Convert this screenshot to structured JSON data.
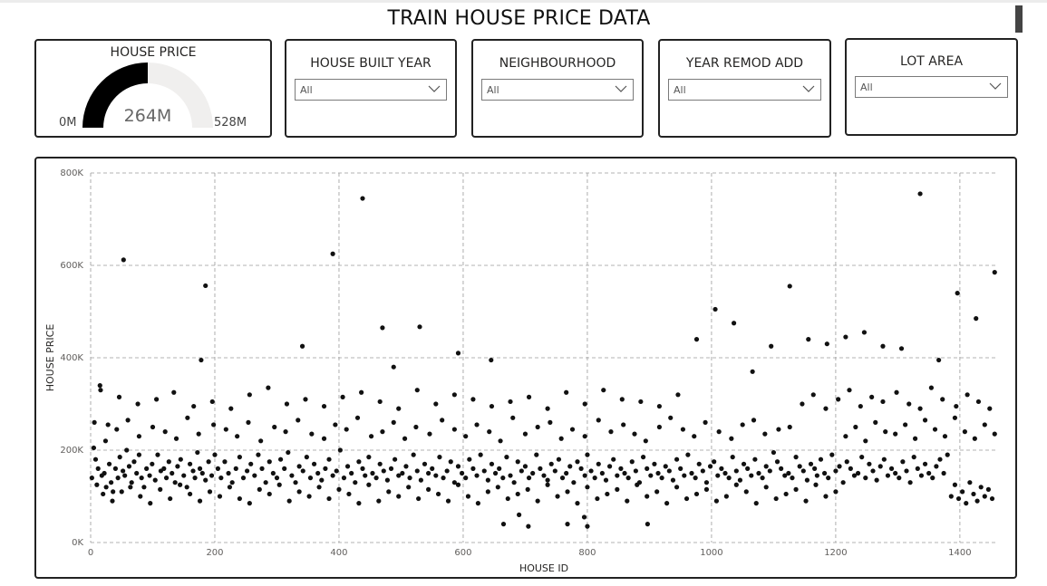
{
  "report": {
    "title": "TRAIN HOUSE PRICE DATA"
  },
  "gauge": {
    "title": "HOUSE PRICE",
    "value": 264,
    "min": 0,
    "max": 528,
    "value_label": "264M",
    "min_label": "0M",
    "max_label": "528M",
    "fill_color": "#000000",
    "track_color": "#f0efee"
  },
  "slicers": [
    {
      "title": "HOUSE BUILT YEAR",
      "selected": "All"
    },
    {
      "title": "NEIGHBOURHOOD",
      "selected": "All"
    },
    {
      "title": "YEAR REMOD ADD",
      "selected": "All"
    },
    {
      "title": "LOT AREA",
      "selected": "All"
    }
  ],
  "chart_data": {
    "type": "scatter",
    "xlabel": "HOUSE ID",
    "ylabel": "HOUSE PRICE",
    "xlim": [
      0,
      1460
    ],
    "ylim": [
      0,
      800000
    ],
    "x_ticks": [
      0,
      200,
      400,
      600,
      800,
      1000,
      1200,
      1400
    ],
    "x_tick_labels": [
      "0",
      "200",
      "400",
      "600",
      "800",
      "1000",
      "1200",
      "1400"
    ],
    "y_ticks": [
      0,
      200000,
      400000,
      600000,
      800000
    ],
    "y_tick_labels": [
      "0K",
      "200K",
      "400K",
      "600K",
      "800K"
    ],
    "grid": true,
    "marker_color": "#111111",
    "points_x": [
      2,
      5,
      8,
      12,
      15,
      18,
      22,
      25,
      28,
      30,
      33,
      36,
      40,
      44,
      47,
      52,
      55,
      58,
      62,
      66,
      70,
      74,
      78,
      82,
      86,
      90,
      95,
      99,
      104,
      108,
      113,
      118,
      122,
      126,
      131,
      136,
      140,
      145,
      150,
      155,
      160,
      165,
      168,
      172,
      176,
      180,
      185,
      190,
      195,
      200,
      205,
      210,
      216,
      222,
      228,
      234,
      240,
      246,
      252,
      258,
      264,
      270,
      276,
      282,
      288,
      294,
      300,
      306,
      312,
      318,
      324,
      330,
      336,
      342,
      348,
      354,
      360,
      366,
      372,
      378,
      384,
      390,
      396,
      402,
      408,
      414,
      420,
      426,
      432,
      438,
      442,
      448,
      454,
      460,
      466,
      472,
      478,
      484,
      490,
      496,
      502,
      508,
      514,
      520,
      526,
      532,
      538,
      544,
      550,
      556,
      562,
      568,
      574,
      580,
      586,
      592,
      598,
      604,
      610,
      616,
      622,
      628,
      634,
      640,
      646,
      652,
      658,
      664,
      670,
      676,
      682,
      688,
      694,
      700,
      706,
      712,
      718,
      724,
      730,
      736,
      742,
      748,
      754,
      760,
      766,
      772,
      778,
      784,
      790,
      796,
      800,
      806,
      812,
      818,
      824,
      830,
      836,
      842,
      848,
      854,
      860,
      866,
      872,
      878,
      884,
      890,
      896,
      902,
      908,
      914,
      920,
      926,
      932,
      938,
      944,
      950,
      956,
      962,
      968,
      974,
      980,
      986,
      992,
      998,
      1004,
      1010,
      1016,
      1022,
      1028,
      1034,
      1040,
      1046,
      1052,
      1058,
      1064,
      1070,
      1076,
      1082,
      1088,
      1094,
      1100,
      1106,
      1112,
      1118,
      1124,
      1130,
      1136,
      1142,
      1148,
      1154,
      1160,
      1166,
      1170,
      1176,
      1182,
      1188,
      1194,
      1200,
      1206,
      1212,
      1218,
      1224,
      1230,
      1236,
      1242,
      1248,
      1254,
      1260,
      1266,
      1272,
      1278,
      1284,
      1290,
      1296,
      1302,
      1308,
      1314,
      1320,
      1326,
      1332,
      1338,
      1344,
      1350,
      1356,
      1362,
      1368,
      1374,
      1380,
      1386,
      1392,
      1398,
      1404,
      1410,
      1416,
      1422,
      1428,
      1434,
      1440,
      1446,
      1452,
      10,
      20,
      35,
      50,
      64,
      80,
      96,
      112,
      128,
      144,
      160,
      176,
      192,
      208,
      224,
      240,
      256,
      272,
      288,
      304,
      320,
      336,
      352,
      368,
      384,
      400,
      416,
      432,
      448,
      464,
      480,
      496,
      512,
      528,
      544,
      560,
      576,
      592,
      608,
      624,
      640,
      656,
      672,
      688,
      704,
      720,
      736,
      752,
      768,
      784,
      800,
      816,
      832,
      848,
      864,
      880,
      896,
      912,
      928,
      944,
      960,
      976,
      992,
      1008,
      1024,
      1040,
      1056,
      1072,
      1088,
      1104,
      1120,
      1136,
      1152,
      1168,
      1184,
      1200,
      1216,
      1232,
      1248,
      1264,
      1280,
      1296,
      1312,
      1328,
      1344,
      1360,
      1376,
      1392,
      1408,
      1424,
      1440,
      1456,
      6,
      24,
      42,
      60,
      78,
      100,
      120,
      138,
      156,
      174,
      198,
      218,
      236,
      254,
      274,
      296,
      314,
      334,
      356,
      376,
      394,
      412,
      430,
      452,
      470,
      488,
      506,
      524,
      546,
      566,
      586,
      604,
      622,
      642,
      660,
      680,
      700,
      720,
      740,
      758,
      776,
      796,
      818,
      838,
      858,
      876,
      894,
      916,
      934,
      954,
      972,
      990,
      1012,
      1032,
      1050,
      1068,
      1086,
      1108,
      1126,
      1146,
      1164,
      1184,
      1204,
      1222,
      1240,
      1258,
      1276,
      1298,
      1318,
      1336,
      1354,
      1372,
      1394,
      1412,
      1430,
      1448,
      16,
      46,
      76,
      106,
      134,
      166,
      196,
      226,
      256,
      286,
      316,
      346,
      376,
      406,
      436,
      466,
      496,
      526,
      556,
      586,
      616,
      646,
      676,
      706,
      736,
      766,
      796,
      826,
      856,
      886,
      916,
      946,
      976,
      1006,
      1036,
      1066,
      1096,
      1126,
      1156,
      1186,
      1216,
      1246,
      1276,
      1306,
      1336,
      1366,
      1396,
      1426,
      1456,
      53,
      178,
      185,
      341,
      390,
      438,
      470,
      488,
      530,
      592,
      645,
      665,
      690,
      705,
      768,
      795,
      800,
      897,
      975,
      1044,
      1143,
      1169,
      1183,
      1244,
      1268,
      1370,
      1386,
      1424,
      30,
      236,
      498,
      532,
      660,
      904,
      966
    ],
    "points_y": [
      140000,
      205000,
      180000,
      160000,
      340000,
      145000,
      150000,
      120000,
      255000,
      170000,
      130000,
      110000,
      160000,
      140000,
      185000,
      155000,
      145000,
      200000,
      165000,
      130000,
      175000,
      150000,
      190000,
      140000,
      120000,
      160000,
      145000,
      170000,
      135000,
      190000,
      155000,
      160000,
      140000,
      175000,
      150000,
      130000,
      165000,
      180000,
      145000,
      120000,
      170000,
      155000,
      140000,
      195000,
      160000,
      150000,
      135000,
      175000,
      145000,
      190000,
      160000,
      140000,
      175000,
      150000,
      130000,
      160000,
      185000,
      140000,
      155000,
      170000,
      145000,
      190000,
      160000,
      130000,
      175000,
      150000,
      140000,
      180000,
      160000,
      195000,
      145000,
      130000,
      165000,
      155000,
      185000,
      140000,
      170000,
      150000,
      135000,
      160000,
      180000,
      145000,
      155000,
      200000,
      140000,
      165000,
      150000,
      130000,
      175000,
      160000,
      145000,
      185000,
      150000,
      140000,
      170000,
      155000,
      135000,
      160000,
      180000,
      145000,
      150000,
      165000,
      140000,
      190000,
      155000,
      135000,
      170000,
      150000,
      160000,
      145000,
      185000,
      140000,
      155000,
      175000,
      130000,
      165000,
      150000,
      140000,
      180000,
      160000,
      145000,
      190000,
      155000,
      135000,
      170000,
      150000,
      160000,
      140000,
      185000,
      145000,
      130000,
      175000,
      155000,
      165000,
      140000,
      150000,
      190000,
      160000,
      145000,
      135000,
      170000,
      155000,
      180000,
      140000,
      150000,
      165000,
      130000,
      175000,
      160000,
      145000,
      190000,
      155000,
      140000,
      170000,
      150000,
      135000,
      165000,
      180000,
      145000,
      160000,
      150000,
      140000,
      175000,
      155000,
      130000,
      185000,
      160000,
      145000,
      170000,
      150000,
      140000,
      165000,
      155000,
      135000,
      180000,
      160000,
      145000,
      190000,
      150000,
      140000,
      170000,
      155000,
      130000,
      165000,
      175000,
      145000,
      160000,
      150000,
      140000,
      185000,
      155000,
      135000,
      170000,
      160000,
      145000,
      180000,
      150000,
      140000,
      165000,
      155000,
      195000,
      175000,
      160000,
      145000,
      150000,
      140000,
      185000,
      165000,
      155000,
      135000,
      170000,
      160000,
      145000,
      180000,
      150000,
      140000,
      190000,
      155000,
      165000,
      130000,
      175000,
      160000,
      145000,
      150000,
      185000,
      140000,
      170000,
      155000,
      135000,
      165000,
      180000,
      145000,
      160000,
      150000,
      140000,
      175000,
      155000,
      130000,
      185000,
      160000,
      145000,
      170000,
      150000,
      140000,
      165000,
      180000,
      150000,
      190000,
      100000,
      125000,
      95000,
      110000,
      85000,
      130000,
      105000,
      90000,
      120000,
      100000,
      115000,
      95000,
      125000,
      105000,
      90000,
      110000,
      120000,
      100000,
      85000,
      115000,
      95000,
      125000,
      105000,
      90000,
      110000,
      100000,
      120000,
      95000,
      85000,
      115000,
      105000,
      125000,
      90000,
      110000,
      100000,
      120000,
      95000,
      115000,
      105000,
      85000,
      125000,
      90000,
      110000,
      100000,
      120000,
      95000,
      115000,
      105000,
      90000,
      125000,
      100000,
      85000,
      110000,
      120000,
      95000,
      105000,
      115000,
      90000,
      125000,
      100000,
      110000,
      85000,
      120000,
      95000,
      105000,
      115000,
      90000,
      125000,
      100000,
      110000,
      85000,
      120000,
      95000,
      105000,
      115000,
      90000,
      100000,
      125000,
      110000,
      85000,
      120000,
      95000,
      105000,
      115000,
      90000,
      125000,
      100000,
      110000,
      230000,
      250000,
      220000,
      260000,
      240000,
      235000,
      255000,
      225000,
      265000,
      245000,
      230000,
      270000,
      240000,
      225000,
      255000,
      235000,
      260000,
      220000,
      245000,
      265000,
      230000,
      250000,
      240000,
      225000,
      270000,
      235000,
      255000,
      245000,
      230000,
      260000,
      220000,
      250000,
      240000,
      265000,
      235000,
      225000,
      255000,
      245000,
      270000,
      230000,
      240000,
      260000,
      225000,
      250000,
      235000,
      265000,
      245000,
      230000,
      255000,
      240000,
      220000,
      270000,
      235000,
      250000,
      260000,
      225000,
      245000,
      230000,
      265000,
      240000,
      255000,
      235000,
      220000,
      250000,
      270000,
      245000,
      230000,
      260000,
      240000,
      225000,
      255000,
      265000,
      235000,
      245000,
      250000,
      300000,
      320000,
      290000,
      310000,
      330000,
      295000,
      315000,
      305000,
      325000,
      300000,
      290000,
      335000,
      310000,
      295000,
      320000,
      305000,
      290000,
      330000,
      315000,
      300000,
      310000,
      325000,
      295000,
      305000,
      290000,
      320000,
      335000,
      300000,
      310000,
      295000,
      315000,
      325000,
      305000,
      290000,
      330000,
      300000,
      320000,
      310000,
      295000,
      305000,
      315000,
      290000,
      325000,
      300000,
      330000,
      310000,
      305000,
      295000,
      320000,
      440000,
      505000,
      475000,
      370000,
      425000,
      555000,
      440000,
      430000,
      445000,
      455000,
      425000,
      420000,
      755000,
      395000,
      540000,
      485000,
      585000,
      612000,
      395000,
      556000,
      425000,
      625000,
      745000,
      465000,
      380000,
      467000,
      410000,
      395000,
      40000,
      60000,
      35000,
      40000,
      55000,
      35000,
      40000
    ]
  },
  "pbi_marker": {
    "icon": "focus-mode-bar"
  }
}
